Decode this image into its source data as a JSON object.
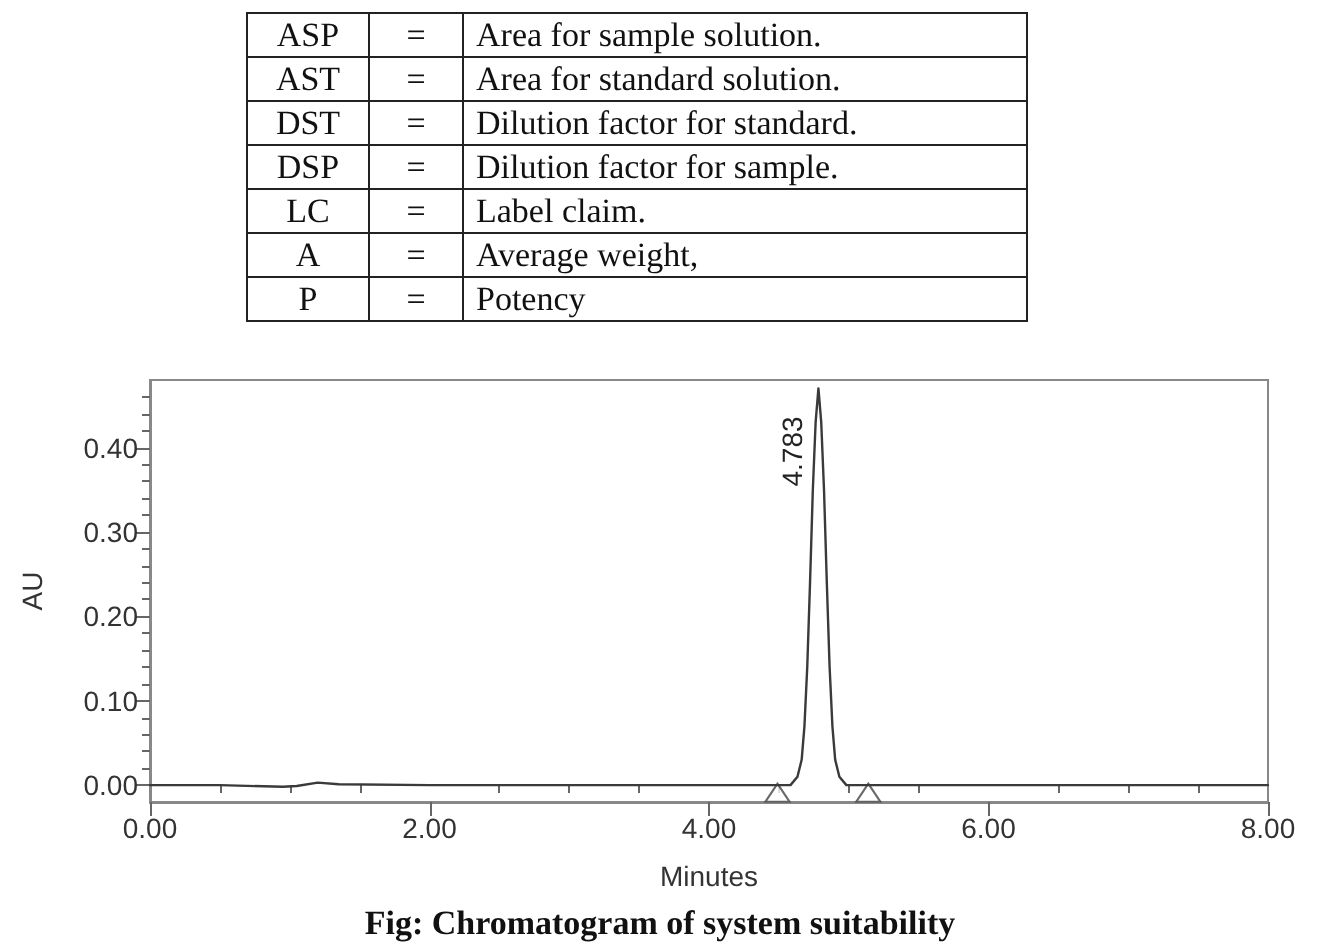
{
  "chart_data": [
    {
      "type": "other",
      "annotations": [
        "ASP",
        "=",
        "Area for sample solution.",
        "AST",
        "=",
        "Area for standard solution.",
        "DST",
        "=",
        "Dilution factor for standard.",
        "DSP",
        "=",
        "Dilution factor for sample.",
        "LC",
        "=",
        "Label claim.",
        "A",
        "=",
        "Average weight,",
        "P",
        "=",
        "Potency"
      ]
    },
    {
      "type": "line",
      "xlabel": "Minutes",
      "ylabel": "AU",
      "xlim": [
        0,
        8
      ],
      "ylim": [
        -0.02,
        0.48
      ],
      "xticks": [
        {
          "value": 0,
          "label": "0.00"
        },
        {
          "value": 0.5,
          "label": null
        },
        {
          "value": 1,
          "label": null
        },
        {
          "value": 1.5,
          "label": null
        },
        {
          "value": 2,
          "label": "2.00"
        },
        {
          "value": 2.5,
          "label": null
        },
        {
          "value": 3,
          "label": null
        },
        {
          "value": 3.5,
          "label": null
        },
        {
          "value": 4,
          "label": "4.00"
        },
        {
          "value": 4.5,
          "label": null
        },
        {
          "value": 5,
          "label": null
        },
        {
          "value": 5.5,
          "label": null
        },
        {
          "value": 6,
          "label": "6.00"
        },
        {
          "value": 6.5,
          "label": null
        },
        {
          "value": 7,
          "label": null
        },
        {
          "value": 7.5,
          "label": null
        },
        {
          "value": 8,
          "label": "8.00"
        }
      ],
      "yticks": [
        {
          "value": 0,
          "label": "0.00"
        },
        {
          "value": 0.02,
          "label": null
        },
        {
          "value": 0.04,
          "label": null
        },
        {
          "value": 0.06,
          "label": null
        },
        {
          "value": 0.08,
          "label": null
        },
        {
          "value": 0.1,
          "label": "0.10"
        },
        {
          "value": 0.12,
          "label": null
        },
        {
          "value": 0.14,
          "label": null
        },
        {
          "value": 0.16,
          "label": null
        },
        {
          "value": 0.18,
          "label": null
        },
        {
          "value": 0.2,
          "label": "0.20"
        },
        {
          "value": 0.22,
          "label": null
        },
        {
          "value": 0.24,
          "label": null
        },
        {
          "value": 0.26,
          "label": null
        },
        {
          "value": 0.28,
          "label": null
        },
        {
          "value": 0.3,
          "label": "0.30"
        },
        {
          "value": 0.32,
          "label": null
        },
        {
          "value": 0.34,
          "label": null
        },
        {
          "value": 0.36,
          "label": null
        },
        {
          "value": 0.38,
          "label": null
        },
        {
          "value": 0.4,
          "label": "0.40"
        },
        {
          "value": 0.42,
          "label": null
        },
        {
          "value": 0.44,
          "label": null
        },
        {
          "value": 0.46,
          "label": null
        }
      ],
      "grid": false,
      "marker": "none",
      "line_style": "solid",
      "series": [
        {
          "color": "#3a3a3a",
          "x": [
            0,
            0.5,
            0.95,
            1.05,
            1.2,
            1.35,
            2,
            3,
            4,
            4.583,
            4.633,
            4.663,
            4.683,
            4.703,
            4.723,
            4.743,
            4.763,
            4.783,
            4.803,
            4.823,
            4.843,
            4.863,
            4.883,
            4.903,
            4.933,
            4.983,
            6,
            7,
            8
          ],
          "values": [
            0,
            0,
            -0.002,
            -0.001,
            0.003,
            0.001,
            0,
            0,
            0,
            0,
            0.01,
            0.03,
            0.07,
            0.14,
            0.24,
            0.35,
            0.43,
            0.47,
            0.43,
            0.35,
            0.24,
            0.14,
            0.07,
            0.03,
            0.01,
            0,
            0,
            0,
            0
          ]
        },
        {
          "type": "scatter",
          "marker": "triangle",
          "color": "#444444",
          "x": [
            4.49,
            5.14
          ],
          "values": [
            -0.009,
            -0.009
          ]
        }
      ],
      "annotations": [
        {
          "text": "4.783",
          "x": 4.783,
          "y": 0.47
        },
        "Fig: Chromatogram of system suitability"
      ]
    }
  ]
}
